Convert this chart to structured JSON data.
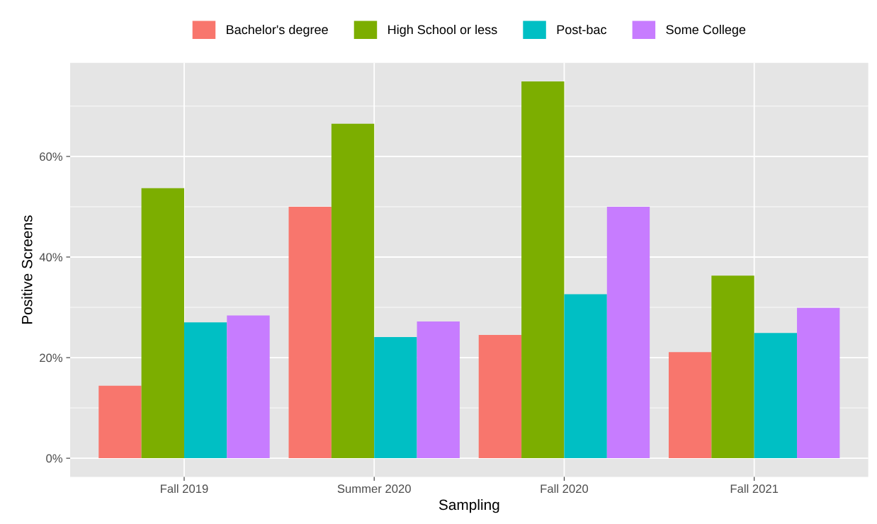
{
  "chart_data": {
    "type": "bar",
    "xlabel": "Sampling",
    "ylabel": "Positive Screens",
    "categories": [
      "Fall 2019",
      "Summer 2020",
      "Fall 2020",
      "Fall 2021"
    ],
    "series": [
      {
        "name": "Bachelor's degree",
        "color": "#f8766d",
        "values": [
          14.4,
          50,
          24.5,
          21.1
        ]
      },
      {
        "name": "High School or less",
        "color": "#7cae00",
        "values": [
          53.7,
          66.5,
          74.9,
          36.3
        ]
      },
      {
        "name": "Post-bac",
        "color": "#00bfc4",
        "values": [
          27.0,
          24.1,
          32.6,
          24.9
        ]
      },
      {
        "name": "Some College",
        "color": "#c77cff",
        "values": [
          28.4,
          27.2,
          50,
          29.9
        ]
      }
    ],
    "ylim": [
      -3.7,
      78.6
    ],
    "yticks": [
      {
        "value": 0,
        "label": "0%"
      },
      {
        "value": 20,
        "label": "20%"
      },
      {
        "value": 40,
        "label": "40%"
      },
      {
        "value": 60,
        "label": "60%"
      }
    ],
    "grid": true,
    "legend": "top"
  }
}
